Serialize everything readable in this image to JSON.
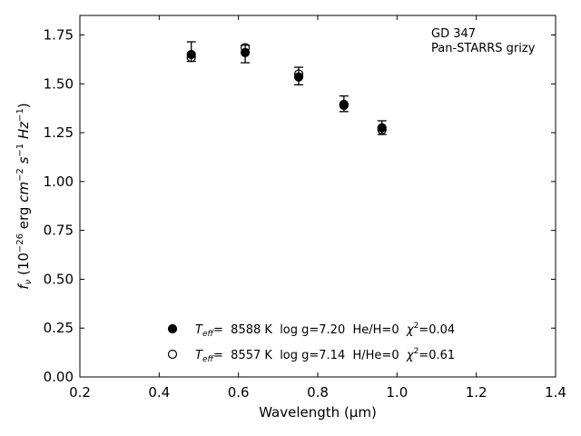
{
  "chart_data": {
    "type": "scatter",
    "title": "",
    "xlabel": "Wavelength",
    "xlabel_unit": "μm",
    "ylabel_text": "erg",
    "xlim": [
      0.2,
      1.4
    ],
    "ylim": [
      0.0,
      1.85
    ],
    "x_ticks": [
      "0.2",
      "0.4",
      "0.6",
      "0.8",
      "1.0",
      "1.2",
      "1.4"
    ],
    "y_ticks": [
      "0.00",
      "0.25",
      "0.50",
      "0.75",
      "1.00",
      "1.25",
      "1.50",
      "1.75"
    ],
    "grid": false,
    "annotation": {
      "line1": "GD 347",
      "line2": "Pan-STARRS grizy"
    },
    "observed": {
      "x": [
        0.481,
        0.617,
        0.752,
        0.866,
        0.962
      ],
      "y": [
        1.665,
        1.653,
        1.54,
        1.398,
        1.276
      ],
      "err": [
        0.05,
        0.045,
        0.045,
        0.04,
        0.035
      ]
    },
    "series": [
      {
        "marker": "filled-circle",
        "teff": "8588 K",
        "logg": "log g=7.20",
        "comp": "He/H=0",
        "chi2": "=0.04",
        "x": [
          0.481,
          0.617,
          0.752,
          0.866,
          0.962
        ],
        "y": [
          1.65,
          1.66,
          1.535,
          1.39,
          1.275
        ]
      },
      {
        "marker": "open-circle",
        "teff": "8557 K",
        "logg": "log g=7.14",
        "comp": "H/He=0",
        "chi2": "=0.61",
        "x": [
          0.481,
          0.617,
          0.752,
          0.866,
          0.962
        ],
        "y": [
          1.635,
          1.685,
          1.55,
          1.395,
          1.265
        ]
      }
    ],
    "legend_location": "lower-center",
    "colors": {
      "marker": "#000000",
      "axes": "#000000",
      "background": "#ffffff"
    }
  }
}
